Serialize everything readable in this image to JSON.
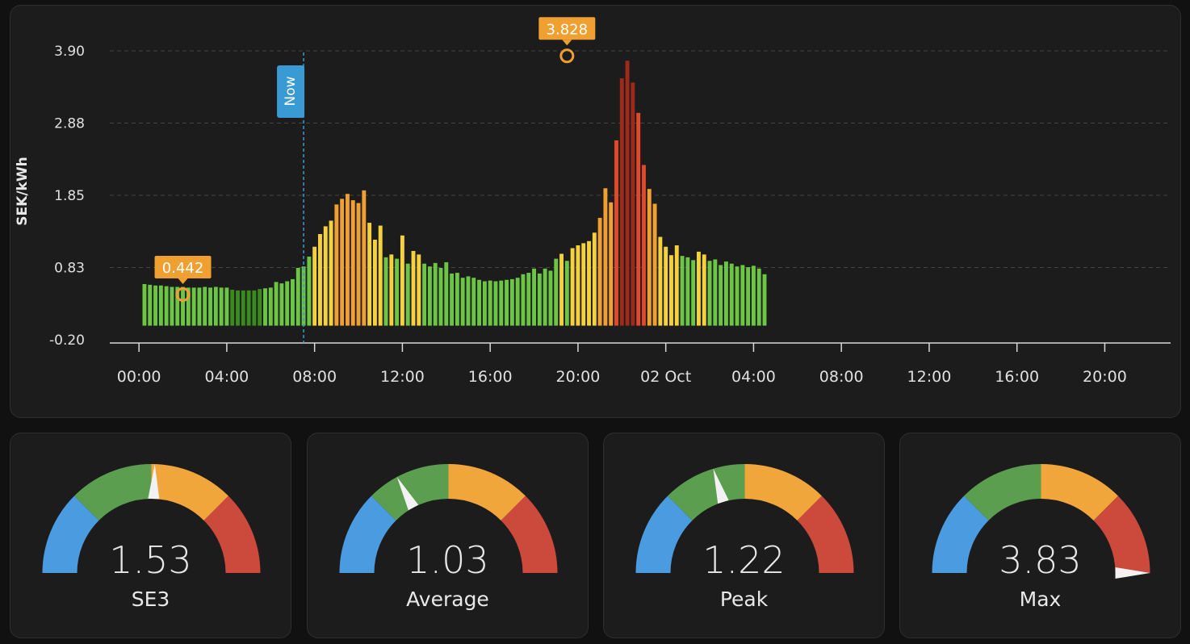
{
  "chart_data": {
    "type": "bar",
    "ylabel": "SEK/kWh",
    "ytick_labels": [
      "3.90",
      "2.88",
      "1.85",
      "0.83",
      "-0.20"
    ],
    "ylim": [
      -0.2,
      3.9
    ],
    "xlim_hours": [
      -1.33,
      47
    ],
    "x_tick_labels": [
      "00:00",
      "04:00",
      "08:00",
      "12:00",
      "16:00",
      "20:00",
      "02 Oct",
      "04:00",
      "08:00",
      "12:00",
      "16:00",
      "20:00"
    ],
    "bar_interval_minutes": 15,
    "bar_start_time": "00:15",
    "grid": true,
    "now_marker": {
      "label": "Now",
      "time": "07:30"
    },
    "min_marker": {
      "label": "0.442",
      "time": "02:00",
      "value": 0.442
    },
    "max_marker": {
      "label": "3.828",
      "time": "19:30",
      "value": 3.828
    },
    "color_scale": {
      "low": "#6cc644",
      "low_dark": "#3a8a1e",
      "mid_low": "#f5d13c",
      "mid": "#f0a030",
      "high": "#e04a2a",
      "peak": "#a02a1a"
    },
    "values": [
      0.59,
      0.58,
      0.57,
      0.57,
      0.56,
      0.55,
      0.55,
      0.55,
      0.54,
      0.54,
      0.54,
      0.55,
      0.54,
      0.55,
      0.54,
      0.54,
      0.51,
      0.5,
      0.5,
      0.5,
      0.5,
      0.52,
      0.53,
      0.54,
      0.62,
      0.6,
      0.63,
      0.66,
      0.82,
      0.84,
      0.98,
      1.12,
      1.3,
      1.41,
      1.49,
      1.72,
      1.8,
      1.87,
      1.78,
      1.74,
      1.92,
      1.46,
      1.22,
      1.42,
      0.97,
      1.01,
      0.95,
      1.28,
      0.88,
      1.06,
      1.01,
      0.88,
      0.84,
      0.89,
      0.82,
      0.9,
      0.74,
      0.75,
      0.68,
      0.7,
      0.68,
      0.65,
      0.63,
      0.64,
      0.63,
      0.64,
      0.65,
      0.66,
      0.68,
      0.73,
      0.75,
      0.81,
      0.74,
      0.81,
      0.78,
      0.95,
      1.02,
      0.92,
      1.1,
      1.14,
      1.17,
      1.2,
      1.32,
      1.53,
      1.95,
      1.75,
      2.63,
      3.51,
      3.76,
      3.45,
      3.02,
      2.28,
      1.94,
      1.73,
      1.26,
      1.12,
      1.0,
      1.14,
      0.99,
      0.97,
      0.93,
      1.05,
      1.01,
      0.92,
      0.94,
      0.86,
      0.91,
      0.88,
      0.84,
      0.86,
      0.83,
      0.85,
      0.81,
      0.73
    ]
  },
  "gauges": [
    {
      "name": "SE3",
      "value": "1.53",
      "needle": 1.53
    },
    {
      "name": "Average",
      "value": "1.03",
      "needle": 1.03
    },
    {
      "name": "Peak",
      "value": "1.22",
      "needle": 1.22
    },
    {
      "name": "Max",
      "value": "3.83",
      "needle": 3.83
    }
  ],
  "gauge_colors": {
    "blue": "#4a9be0",
    "green": "#5b9e4f",
    "orange": "#f0a63a",
    "red": "#cc4a3c",
    "needle": "#f2f2f2"
  },
  "gauge_range": {
    "min": 0,
    "max": 3.0
  }
}
